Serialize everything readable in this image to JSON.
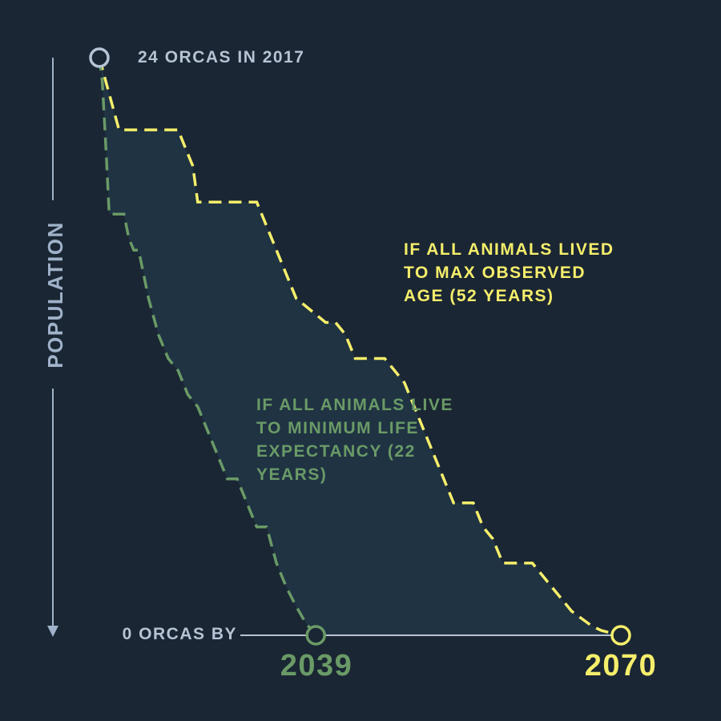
{
  "chart_data": {
    "type": "area",
    "ylabel": "POPULATION",
    "start_annotation": "24 ORCAS IN 2017",
    "end_annotation": "0 ORCAS BY",
    "xlim": [
      2017,
      2070
    ],
    "ylim": [
      0,
      24
    ],
    "series": [
      {
        "label": [
          "IF ALL ANIMALS LIVED",
          "TO MAX OBSERVED",
          "AGE (52 YEARS)"
        ],
        "end_year": "2070",
        "color": "#f5ee6b",
        "x": [
          2017,
          2018,
          2019,
          2025,
          2026,
          2026.5,
          2027,
          2033,
          2034,
          2035,
          2036,
          2036.5,
          2037,
          2040,
          2041,
          2042,
          2043,
          2046,
          2047,
          2048,
          2049,
          2050,
          2051,
          2052,
          2053,
          2055,
          2056,
          2057,
          2058,
          2061,
          2062,
          2063,
          2064,
          2065,
          2066,
          2067,
          2068,
          2069,
          2070
        ],
        "y": [
          24,
          22.5,
          21,
          21,
          20,
          19.5,
          18,
          18,
          17,
          16,
          15,
          14.5,
          14,
          13,
          13,
          12.5,
          11.5,
          11.5,
          11,
          10.5,
          9.5,
          8.5,
          7.5,
          6.5,
          5.5,
          5.5,
          4.5,
          4,
          3,
          3,
          2.5,
          2,
          1.5,
          1,
          0.7,
          0.4,
          0.2,
          0.1,
          0
        ]
      },
      {
        "label": [
          "IF ALL ANIMALS LIVE",
          "TO MINIMUM LIFE",
          "EXPECTANCY (22",
          "YEARS)"
        ],
        "end_year": "2039",
        "color": "#6a9a66",
        "x": [
          2017,
          2017.3,
          2017.7,
          2018,
          2019.5,
          2020,
          2020.5,
          2021,
          2022,
          2023,
          2024,
          2025,
          2026,
          2027,
          2028,
          2029,
          2030,
          2031,
          2032,
          2033,
          2034,
          2035,
          2036,
          2037,
          2038,
          2039
        ],
        "y": [
          24,
          23,
          20,
          17.5,
          17.5,
          16.5,
          16,
          16,
          14,
          12.5,
          11.5,
          11,
          10,
          9.5,
          8.5,
          7.5,
          6.5,
          6.5,
          5.5,
          4.5,
          4.5,
          3,
          2,
          1.2,
          0.5,
          0
        ]
      }
    ]
  }
}
